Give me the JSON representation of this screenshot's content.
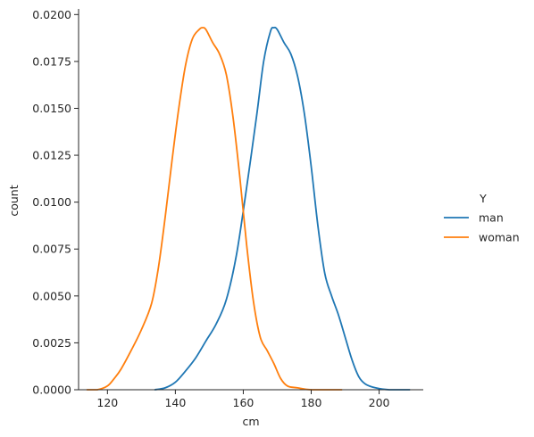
{
  "chart_data": {
    "type": "line",
    "title": "",
    "xlabel": "cm",
    "ylabel": "count",
    "xlim": [
      111.5,
      213
    ],
    "ylim": [
      0,
      0.0203
    ],
    "grid": false,
    "legend_placement": "right",
    "legend_title": "Y",
    "xticks": [
      120,
      140,
      160,
      180,
      200
    ],
    "xtick_labels": [
      "120",
      "140",
      "160",
      "180",
      "200"
    ],
    "yticks": [
      0,
      0.0025,
      0.005,
      0.0075,
      0.01,
      0.0125,
      0.015,
      0.0175,
      0.02
    ],
    "ytick_labels": [
      "0.0000",
      "0.0025",
      "0.0050",
      "0.0075",
      "0.0100",
      "0.0125",
      "0.0150",
      "0.0175",
      "0.0200"
    ],
    "series": [
      {
        "name": "man",
        "color": "#1f77b4",
        "points": [
          [
            134,
            0.0
          ],
          [
            137,
            0.0001
          ],
          [
            140,
            0.0004
          ],
          [
            143,
            0.001
          ],
          [
            146,
            0.0017
          ],
          [
            149,
            0.0026
          ],
          [
            152,
            0.0035
          ],
          [
            155,
            0.0048
          ],
          [
            158,
            0.0072
          ],
          [
            161,
            0.0108
          ],
          [
            164,
            0.0147
          ],
          [
            166,
            0.0175
          ],
          [
            168,
            0.0191
          ],
          [
            169,
            0.0193
          ],
          [
            170,
            0.0192
          ],
          [
            172,
            0.0185
          ],
          [
            174,
            0.0179
          ],
          [
            176,
            0.0167
          ],
          [
            178,
            0.0147
          ],
          [
            180,
            0.0119
          ],
          [
            182,
            0.0087
          ],
          [
            184,
            0.0062
          ],
          [
            186,
            0.005
          ],
          [
            188,
            0.004
          ],
          [
            190,
            0.0028
          ],
          [
            192,
            0.0016
          ],
          [
            194,
            0.0007
          ],
          [
            196,
            0.0003
          ],
          [
            199,
            0.0001
          ],
          [
            203,
            0.0
          ],
          [
            209,
            0.0
          ]
        ]
      },
      {
        "name": "woman",
        "color": "#ff7f0e",
        "points": [
          [
            114,
            0.0
          ],
          [
            117,
            0.0
          ],
          [
            120,
            0.0002
          ],
          [
            122,
            0.0006
          ],
          [
            124,
            0.0011
          ],
          [
            127,
            0.0021
          ],
          [
            130,
            0.0032
          ],
          [
            133,
            0.0046
          ],
          [
            135,
            0.0065
          ],
          [
            137,
            0.0092
          ],
          [
            139,
            0.0122
          ],
          [
            141,
            0.015
          ],
          [
            143,
            0.0173
          ],
          [
            145,
            0.0187
          ],
          [
            147,
            0.0192
          ],
          [
            148,
            0.0193
          ],
          [
            149,
            0.0192
          ],
          [
            151,
            0.0185
          ],
          [
            153,
            0.0179
          ],
          [
            155,
            0.0168
          ],
          [
            157,
            0.0145
          ],
          [
            159,
            0.0113
          ],
          [
            161,
            0.0077
          ],
          [
            163,
            0.0047
          ],
          [
            165,
            0.0028
          ],
          [
            167,
            0.0021
          ],
          [
            169,
            0.0014
          ],
          [
            171,
            0.0006
          ],
          [
            173,
            0.0002
          ],
          [
            176,
            0.0001
          ],
          [
            180,
            0.0
          ],
          [
            189,
            0.0
          ]
        ]
      }
    ]
  }
}
